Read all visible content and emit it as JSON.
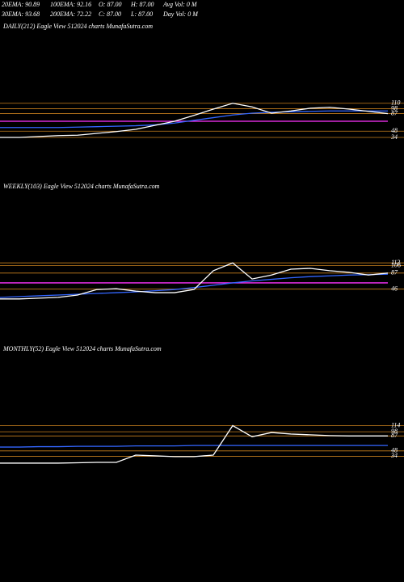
{
  "header": {
    "rows": [
      [
        "20EMA: 90.89",
        "100EMA: 92.16",
        "O: 87.00",
        "H: 87.00",
        "Avg Vol: 0  M"
      ],
      [
        "30EMA: 93.68",
        "200EMA: 72.22",
        "C: 87.00",
        "L: 87.00",
        "Day Vol: 0  M"
      ]
    ]
  },
  "chart_data": [
    {
      "type": "line",
      "title": "DAILY(212) Eagle  View  512024  charts MunafaSutra.com",
      "categories": [
        null,
        null,
        null,
        null,
        null,
        null,
        null,
        null,
        null,
        null,
        null,
        null,
        null,
        null,
        null,
        null,
        null,
        null,
        null,
        null,
        null
      ],
      "series": [
        {
          "color": "#ff33ff",
          "values": [
            70,
            70,
            70,
            70,
            70,
            70,
            70,
            70,
            70,
            70,
            70,
            70,
            70,
            70,
            70,
            70,
            70,
            70,
            70,
            70,
            70
          ]
        },
        {
          "color": "#3366ff",
          "values": [
            56,
            56,
            56,
            56,
            57,
            58,
            59,
            60,
            62,
            66,
            72,
            78,
            84,
            88,
            90,
            91,
            92,
            93,
            93,
            93,
            93
          ]
        },
        {
          "color": "#ffffff",
          "values": [
            34,
            34,
            36,
            38,
            39,
            43,
            47,
            52,
            61,
            70,
            83,
            97,
            110,
            102,
            88,
            93,
            99,
            101,
            97,
            92,
            87
          ]
        }
      ],
      "ylim": [
        -20,
        160
      ],
      "yticks": [
        110,
        98,
        87,
        48,
        34
      ],
      "grid": true,
      "grid_color": "#c8801e"
    },
    {
      "type": "line",
      "title": "WEEKLY(103) Eagle  View  512024  charts MunafaSutra.com",
      "categories": [
        null,
        null,
        null,
        null,
        null,
        null,
        null,
        null,
        null,
        null,
        null,
        null,
        null,
        null,
        null,
        null,
        null,
        null,
        null,
        null,
        null
      ],
      "series": [
        {
          "color": "#ff33ff",
          "values": [
            62,
            62,
            62,
            62,
            62,
            62,
            62,
            62,
            62,
            62,
            62,
            62,
            62,
            62,
            62,
            62,
            62,
            62,
            62,
            62,
            62
          ]
        },
        {
          "color": "#3366ff",
          "values": [
            25,
            27,
            29,
            31,
            33,
            35,
            37,
            39,
            42,
            45,
            50,
            56,
            62,
            67,
            71,
            75,
            78,
            80,
            82,
            83,
            84
          ]
        },
        {
          "color": "#ffffff",
          "values": [
            21,
            21,
            23,
            25,
            31,
            45,
            47,
            41,
            37,
            37,
            45,
            93,
            113,
            72,
            82,
            97,
            99,
            93,
            89,
            82,
            87
          ]
        }
      ],
      "ylim": [
        0,
        165
      ],
      "yticks": [
        113,
        106,
        87,
        46
      ],
      "grid": true,
      "grid_color": "#c8801e"
    },
    {
      "type": "line",
      "title": "MONTHLY(52) Eagle  View  512024  charts MunafaSutra.com",
      "categories": [
        null,
        null,
        null,
        null,
        null,
        null,
        null,
        null,
        null,
        null,
        null,
        null,
        null,
        null,
        null,
        null,
        null,
        null,
        null,
        null,
        null
      ],
      "series": [
        {
          "color": "#3366ff",
          "values": [
            58,
            58,
            59,
            59,
            60,
            60,
            60,
            61,
            61,
            61,
            62,
            62,
            62,
            62,
            62,
            62,
            62,
            62,
            62,
            62,
            62
          ]
        },
        {
          "color": "#ffffff",
          "values": [
            16,
            16,
            16,
            16,
            17,
            18,
            18,
            37,
            35,
            33,
            33,
            37,
            114,
            85,
            96,
            92,
            90,
            88,
            87,
            87,
            87
          ]
        }
      ],
      "ylim": [
        -20,
        170
      ],
      "yticks": [
        114,
        98,
        87,
        48,
        34
      ],
      "grid": true,
      "grid_color": "#c8801e"
    }
  ]
}
